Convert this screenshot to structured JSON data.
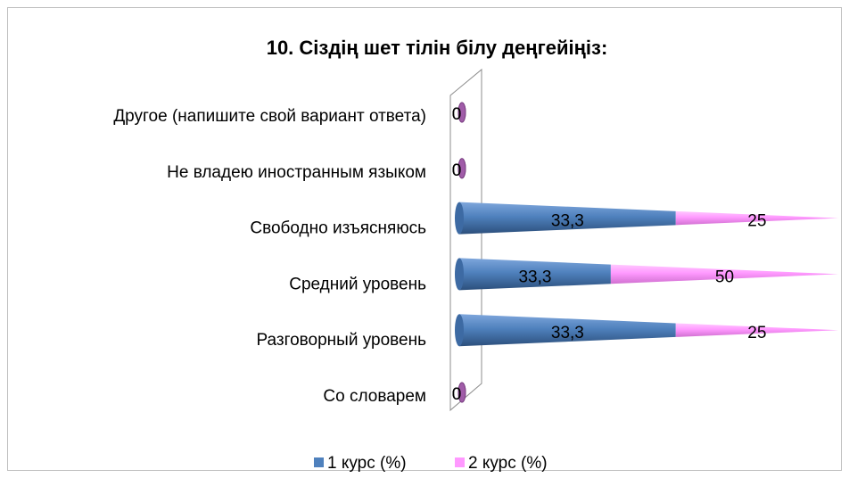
{
  "chart_data": {
    "type": "cone-bar-stacked-percent",
    "title": "10. Сіздің шет тілін білу деңгейіңіз:",
    "categories": [
      "Со словарем",
      "Разговорный уровень",
      "Средний уровень",
      "Свободно изъясняюсь",
      "Не владею иностранным языком",
      "Другое (напишите свой вариант ответа)"
    ],
    "series": [
      {
        "name": "1 курс (%)",
        "color": "#4f81bd",
        "values": [
          0,
          33.3,
          33.3,
          33.3,
          0,
          0
        ],
        "value_labels": [
          "0",
          "33,3",
          "33,3",
          "33,3",
          "0",
          "0"
        ]
      },
      {
        "name": "2 курс (%)",
        "color": "#ff99ff",
        "values": [
          0,
          25,
          50,
          25,
          0,
          0
        ],
        "value_labels": [
          "0",
          "25",
          "50",
          "25",
          "0",
          "0"
        ]
      }
    ],
    "legend": "bottom"
  }
}
